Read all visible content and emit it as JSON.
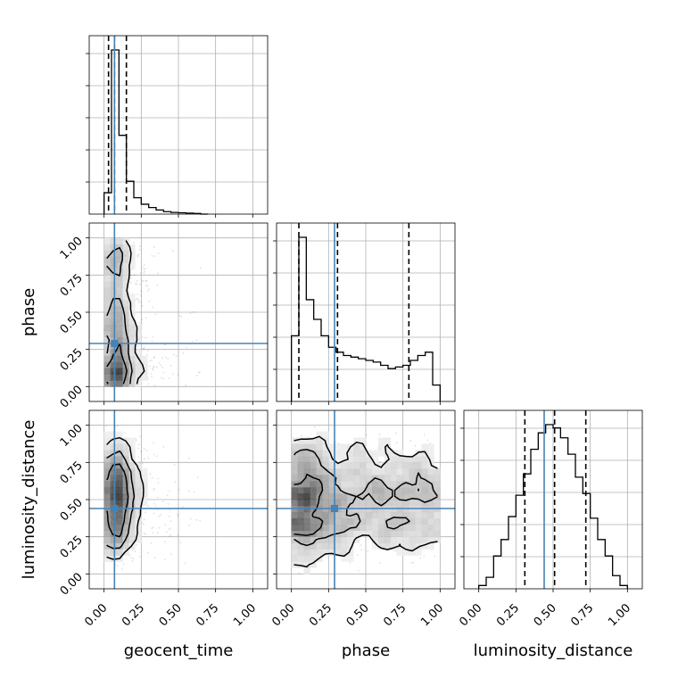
{
  "chart_data": {
    "type": "corner",
    "parameters": [
      "geocent_time",
      "phase",
      "luminosity_distance"
    ],
    "truths": {
      "geocent_time": 0.07,
      "phase": 0.29,
      "luminosity_distance": 0.44
    },
    "grid": true,
    "truth_color": "#4682b4",
    "axis_ticks": [
      "0.00",
      "0.25",
      "0.50",
      "0.75",
      "1.00"
    ],
    "axis_range": [
      -0.1,
      1.1
    ],
    "histograms": {
      "geocent_time": {
        "bin_edges": [
          0.0,
          0.05,
          0.1,
          0.15,
          0.2,
          0.25,
          0.3,
          0.35,
          0.4,
          0.45,
          0.5,
          0.55,
          0.6,
          0.65,
          0.7
        ],
        "counts": [
          0.13,
          1.0,
          0.48,
          0.2,
          0.1,
          0.06,
          0.04,
          0.025,
          0.015,
          0.01,
          0.008,
          0.006,
          0.004,
          0.0
        ],
        "quantiles": [
          0.03,
          0.07,
          0.15
        ]
      },
      "phase": {
        "bin_edges": [
          0.0,
          0.05,
          0.1,
          0.15,
          0.2,
          0.25,
          0.3,
          0.35,
          0.4,
          0.45,
          0.5,
          0.55,
          0.6,
          0.65,
          0.7,
          0.75,
          0.8,
          0.85,
          0.9,
          0.95,
          1.0
        ],
        "counts": [
          0.4,
          1.0,
          0.62,
          0.5,
          0.4,
          0.33,
          0.3,
          0.28,
          0.27,
          0.26,
          0.25,
          0.24,
          0.22,
          0.2,
          0.21,
          0.22,
          0.25,
          0.28,
          0.3,
          0.1
        ],
        "quantiles": [
          0.05,
          0.31,
          0.79
        ]
      },
      "luminosity_distance": {
        "bin_edges": [
          0.0,
          0.05,
          0.1,
          0.15,
          0.2,
          0.25,
          0.3,
          0.35,
          0.4,
          0.45,
          0.5,
          0.55,
          0.6,
          0.65,
          0.7,
          0.75,
          0.8,
          0.85,
          0.9,
          0.95,
          1.0
        ],
        "counts": [
          0.02,
          0.07,
          0.2,
          0.3,
          0.44,
          0.57,
          0.7,
          0.85,
          0.95,
          1.0,
          0.98,
          0.92,
          0.82,
          0.68,
          0.58,
          0.43,
          0.3,
          0.2,
          0.08,
          0.02
        ],
        "quantiles": [
          0.31,
          0.51,
          0.72
        ]
      }
    },
    "scatter_samples_per_panel": 1200
  }
}
